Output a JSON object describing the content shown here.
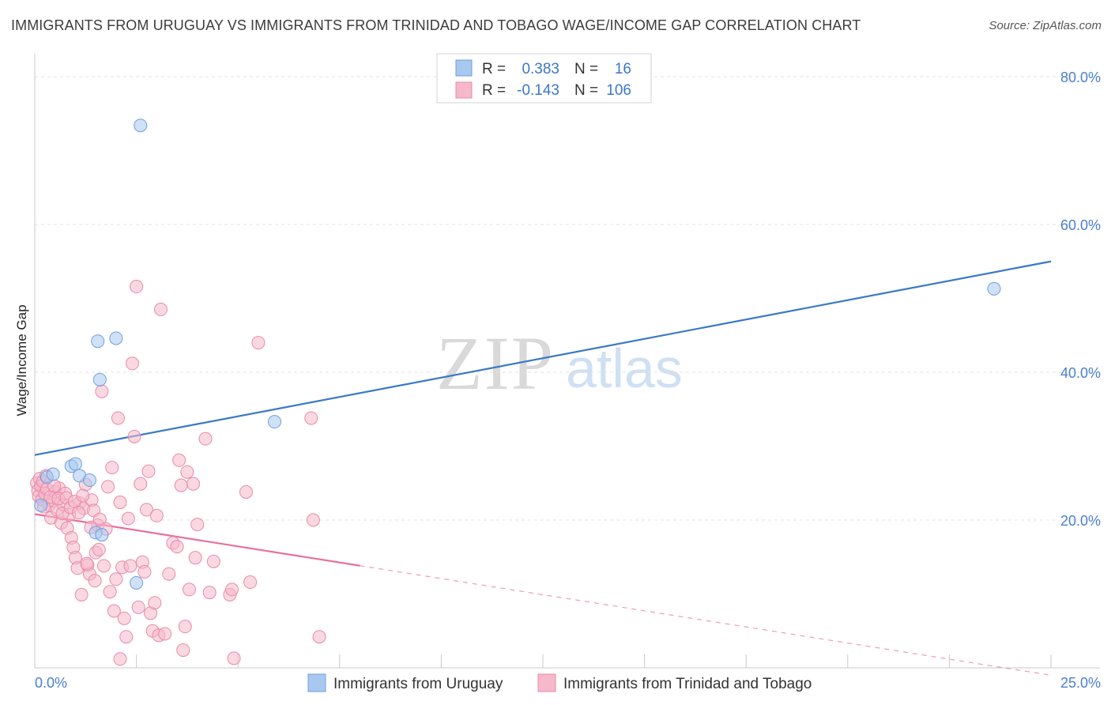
{
  "title": "IMMIGRANTS FROM URUGUAY VS IMMIGRANTS FROM TRINIDAD AND TOBAGO WAGE/INCOME GAP CORRELATION CHART",
  "source": "Source: ZipAtlas.com",
  "watermark": {
    "part1": "ZIP",
    "part2": "atlas"
  },
  "stats_box": {
    "rows": [
      {
        "r_label": "R =",
        "r_value": "0.383",
        "n_label": "N =",
        "n_value": "16",
        "color": "#a8c8f0"
      },
      {
        "r_label": "R =",
        "r_value": "-0.143",
        "n_label": "N =",
        "n_value": "106",
        "color": "#f6b8cb"
      }
    ]
  },
  "chart_data": {
    "type": "scatter",
    "title": "IMMIGRANTS FROM URUGUAY VS IMMIGRANTS FROM TRINIDAD AND TOBAGO WAGE/INCOME GAP CORRELATION CHART",
    "xlabel": "",
    "ylabel": "Wage/Income Gap",
    "xlim": [
      0,
      25
    ],
    "ylim": [
      0,
      80
    ],
    "x_tick_labels": [
      "0.0%",
      "25.0%"
    ],
    "y_ticks": [
      20,
      40,
      60,
      80
    ],
    "y_tick_labels": [
      "20.0%",
      "40.0%",
      "60.0%",
      "80.0%"
    ],
    "grid": true,
    "legend_position": "bottom",
    "series": [
      {
        "name": "Immigrants from Uruguay",
        "color": "#a8c8f0",
        "stroke": "#6f9fd8",
        "line_color": "#3a78c9",
        "trend": {
          "x": [
            0,
            25
          ],
          "y": [
            28.8,
            55.0
          ],
          "dashed_from": null
        },
        "points": [
          [
            0.15,
            22.0
          ],
          [
            0.3,
            25.8
          ],
          [
            0.45,
            26.2
          ],
          [
            0.9,
            27.3
          ],
          [
            1.0,
            27.6
          ],
          [
            1.1,
            26.0
          ],
          [
            1.35,
            25.4
          ],
          [
            1.5,
            18.3
          ],
          [
            1.55,
            44.2
          ],
          [
            1.6,
            39.0
          ],
          [
            1.65,
            18.0
          ],
          [
            2.0,
            44.6
          ],
          [
            2.5,
            11.5
          ],
          [
            2.6,
            73.4
          ],
          [
            5.9,
            33.3
          ],
          [
            23.6,
            51.3
          ]
        ]
      },
      {
        "name": "Immigrants from Trinidad and Tobago",
        "color": "#f6b8cb",
        "stroke": "#e98aa8",
        "line_color": "#e8709a",
        "trend": {
          "x": [
            0,
            25
          ],
          "y": [
            20.8,
            -1.0
          ],
          "dashed_from": 8.0
        },
        "points": [
          [
            0.05,
            25.0
          ],
          [
            0.08,
            24.0
          ],
          [
            0.1,
            23.2
          ],
          [
            0.12,
            25.6
          ],
          [
            0.15,
            24.6
          ],
          [
            0.18,
            22.8
          ],
          [
            0.2,
            25.2
          ],
          [
            0.25,
            23.6
          ],
          [
            0.3,
            24.2
          ],
          [
            0.35,
            22.0
          ],
          [
            0.4,
            20.3
          ],
          [
            0.45,
            22.6
          ],
          [
            0.5,
            23.8
          ],
          [
            0.55,
            21.4
          ],
          [
            0.6,
            24.3
          ],
          [
            0.65,
            19.6
          ],
          [
            0.7,
            22.1
          ],
          [
            0.75,
            23.6
          ],
          [
            0.8,
            18.9
          ],
          [
            0.85,
            20.7
          ],
          [
            0.9,
            17.6
          ],
          [
            0.95,
            16.3
          ],
          [
            1.0,
            14.9
          ],
          [
            1.05,
            13.5
          ],
          [
            1.1,
            22.3
          ],
          [
            1.15,
            9.9
          ],
          [
            1.2,
            21.6
          ],
          [
            1.25,
            24.8
          ],
          [
            1.3,
            13.9
          ],
          [
            1.35,
            12.7
          ],
          [
            1.4,
            22.7
          ],
          [
            1.45,
            21.3
          ],
          [
            1.5,
            15.6
          ],
          [
            1.55,
            19.3
          ],
          [
            1.6,
            20.1
          ],
          [
            1.65,
            37.4
          ],
          [
            1.7,
            13.8
          ],
          [
            1.75,
            18.8
          ],
          [
            1.8,
            24.5
          ],
          [
            1.85,
            10.3
          ],
          [
            1.9,
            27.1
          ],
          [
            1.95,
            7.7
          ],
          [
            2.0,
            12.0
          ],
          [
            2.05,
            33.8
          ],
          [
            2.1,
            22.4
          ],
          [
            2.15,
            13.6
          ],
          [
            2.2,
            6.7
          ],
          [
            2.25,
            4.2
          ],
          [
            2.3,
            20.2
          ],
          [
            2.35,
            13.8
          ],
          [
            2.4,
            41.2
          ],
          [
            2.45,
            31.3
          ],
          [
            2.5,
            51.6
          ],
          [
            2.55,
            8.2
          ],
          [
            2.6,
            24.9
          ],
          [
            2.65,
            14.3
          ],
          [
            2.7,
            13.0
          ],
          [
            2.75,
            21.4
          ],
          [
            2.8,
            26.6
          ],
          [
            2.85,
            7.4
          ],
          [
            2.9,
            5.0
          ],
          [
            2.95,
            8.8
          ],
          [
            3.0,
            20.6
          ],
          [
            3.05,
            4.4
          ],
          [
            3.1,
            48.5
          ],
          [
            3.2,
            4.6
          ],
          [
            3.3,
            12.7
          ],
          [
            3.4,
            16.9
          ],
          [
            3.5,
            16.4
          ],
          [
            3.55,
            28.1
          ],
          [
            3.6,
            24.7
          ],
          [
            3.65,
            2.4
          ],
          [
            3.7,
            5.6
          ],
          [
            3.75,
            26.5
          ],
          [
            3.8,
            10.6
          ],
          [
            3.9,
            24.9
          ],
          [
            3.95,
            14.9
          ],
          [
            4.0,
            19.4
          ],
          [
            4.2,
            31.0
          ],
          [
            4.3,
            10.2
          ],
          [
            4.4,
            14.4
          ],
          [
            4.8,
            9.9
          ],
          [
            4.85,
            10.6
          ],
          [
            4.9,
            1.3
          ],
          [
            5.2,
            23.8
          ],
          [
            5.3,
            11.6
          ],
          [
            5.5,
            44.0
          ],
          [
            6.8,
            33.8
          ],
          [
            6.85,
            20.0
          ],
          [
            7.0,
            4.2
          ],
          [
            0.22,
            21.8
          ],
          [
            0.28,
            26.0
          ],
          [
            0.38,
            23.1
          ],
          [
            0.48,
            24.6
          ],
          [
            0.58,
            22.9
          ],
          [
            0.68,
            20.9
          ],
          [
            0.78,
            23.0
          ],
          [
            0.88,
            21.7
          ],
          [
            0.98,
            22.5
          ],
          [
            1.08,
            21.0
          ],
          [
            1.18,
            23.3
          ],
          [
            1.28,
            14.1
          ],
          [
            1.38,
            19.0
          ],
          [
            1.48,
            11.8
          ],
          [
            1.58,
            16.0
          ],
          [
            2.1,
            1.2
          ]
        ]
      }
    ]
  }
}
